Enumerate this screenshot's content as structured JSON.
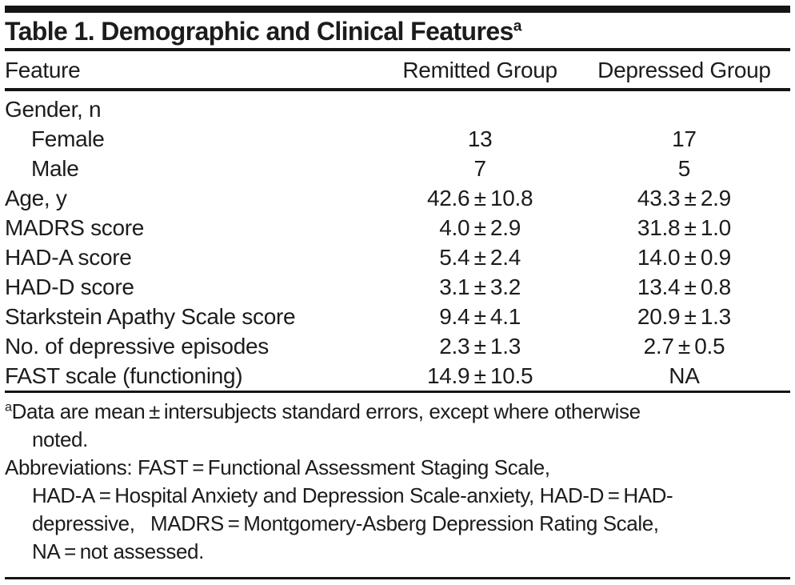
{
  "title": {
    "text": "Table 1. Demographic and Clinical Features",
    "footnote_marker": "a"
  },
  "table": {
    "columns": [
      "Feature",
      "Remitted Group",
      "Depressed Group"
    ],
    "rows": [
      {
        "feature": "Gender, n",
        "remitted": "",
        "depressed": ""
      },
      {
        "feature": "Female",
        "remitted": "13",
        "depressed": "17"
      },
      {
        "feature": "Male",
        "remitted": "7",
        "depressed": "5"
      },
      {
        "feature": "Age, y",
        "remitted": "42.6 ± 10.8",
        "depressed": "43.3 ± 2.9"
      },
      {
        "feature": "MADRS score",
        "remitted": "4.0 ± 2.9",
        "depressed": "31.8 ± 1.0"
      },
      {
        "feature": "HAD-A score",
        "remitted": "5.4 ± 2.4",
        "depressed": "14.0 ± 0.9"
      },
      {
        "feature": "HAD-D score",
        "remitted": "3.1 ± 3.2",
        "depressed": "13.4 ± 0.8"
      },
      {
        "feature": "Starkstein Apathy Scale score",
        "remitted": "9.4 ± 4.1",
        "depressed": "20.9 ± 1.3"
      },
      {
        "feature": "No. of depressive episodes",
        "remitted": "2.3 ± 1.3",
        "depressed": "2.7 ± 0.5"
      },
      {
        "feature": "FAST scale (functioning)",
        "remitted": "14.9 ± 10.5",
        "depressed": "NA"
      }
    ]
  },
  "footnotes": {
    "note_a": {
      "marker": "a",
      "lines": [
        "Data are mean ± intersubjects standard errors, except where otherwise",
        "noted."
      ]
    },
    "abbreviations": {
      "lines": [
        "Abbreviations: FAST = Functional Assessment Staging Scale,",
        "HAD-A = Hospital Anxiety and Depression Scale-anxiety, HAD-D = HAD-",
        "depressive,  MADRS = Montgomery-Asberg Depression Rating Scale,",
        "NA = not assessed."
      ]
    }
  },
  "colors": {
    "text": "#1d1b1c",
    "rule": "#161415",
    "background": "#ffffff"
  }
}
